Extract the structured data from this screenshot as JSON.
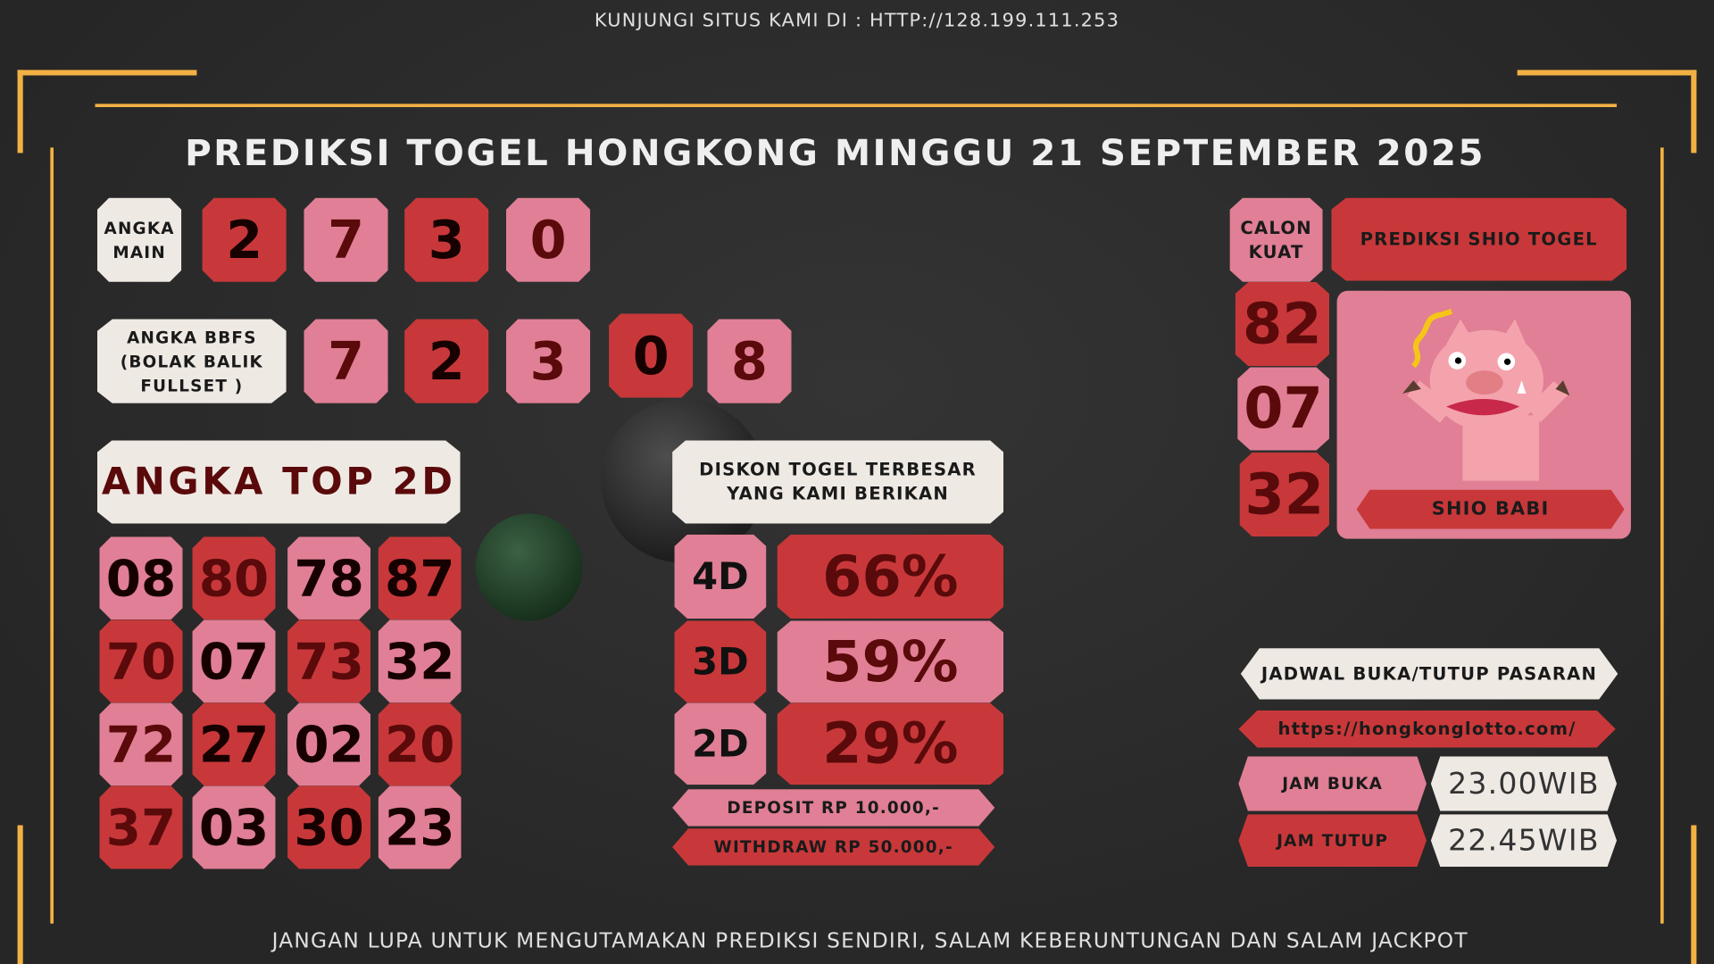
{
  "header": {
    "visit_text": "KUNJUNGI SITUS KAMI DI : HTTP://128.199.111.253",
    "title": "PREDIKSI TOGEL HONGKONG MINGGU 21 SEPTEMBER 2025"
  },
  "colors": {
    "red": "#c8383a",
    "pink": "#e07f95",
    "cream": "#efe9e4",
    "gold": "#f2b143",
    "background": "#2a2a2a"
  },
  "angka_main": {
    "label_line1": "ANGKA",
    "label_line2": "MAIN",
    "numbers": [
      "2",
      "7",
      "3",
      "0"
    ]
  },
  "bbfs": {
    "label_line1": "ANGKA BBFS",
    "label_line2": "(BOLAK BALIK",
    "label_line3": "FULLSET )",
    "numbers": [
      "7",
      "2",
      "3",
      "0",
      "8"
    ]
  },
  "top2d": {
    "title": "ANGKA TOP 2D",
    "rows": [
      [
        "08",
        "80",
        "78",
        "87"
      ],
      [
        "70",
        "07",
        "73",
        "32"
      ],
      [
        "72",
        "27",
        "02",
        "20"
      ],
      [
        "37",
        "03",
        "30",
        "23"
      ]
    ]
  },
  "diskon": {
    "title_line1": "DISKON TOGEL TERBESAR",
    "title_line2": "YANG KAMI BERIKAN",
    "items": [
      {
        "label": "4D",
        "value": "66%"
      },
      {
        "label": "3D",
        "value": "59%"
      },
      {
        "label": "2D",
        "value": "29%"
      }
    ],
    "deposit": "DEPOSIT RP 10.000,-",
    "withdraw": "WITHDRAW RP 50.000,-"
  },
  "calon_kuat": {
    "label_line1": "CALON",
    "label_line2": "KUAT",
    "numbers": [
      "82",
      "07",
      "32"
    ]
  },
  "shio": {
    "title": "PREDIKSI SHIO TOGEL",
    "name": "SHIO BABI",
    "icon": "pig-illustration"
  },
  "jadwal": {
    "title": "JADWAL BUKA/TUTUP PASARAN",
    "url": "https://hongkonglotto.com/",
    "buka_label": "JAM BUKA",
    "buka_value": "23.00WIB",
    "tutup_label": "JAM TUTUP",
    "tutup_value": "22.45WIB"
  },
  "footer": {
    "text": "JANGAN LUPA UNTUK MENGUTAMAKAN PREDIKSI SENDIRI, SALAM KEBERUNTUNGAN DAN SALAM JACKPOT"
  }
}
